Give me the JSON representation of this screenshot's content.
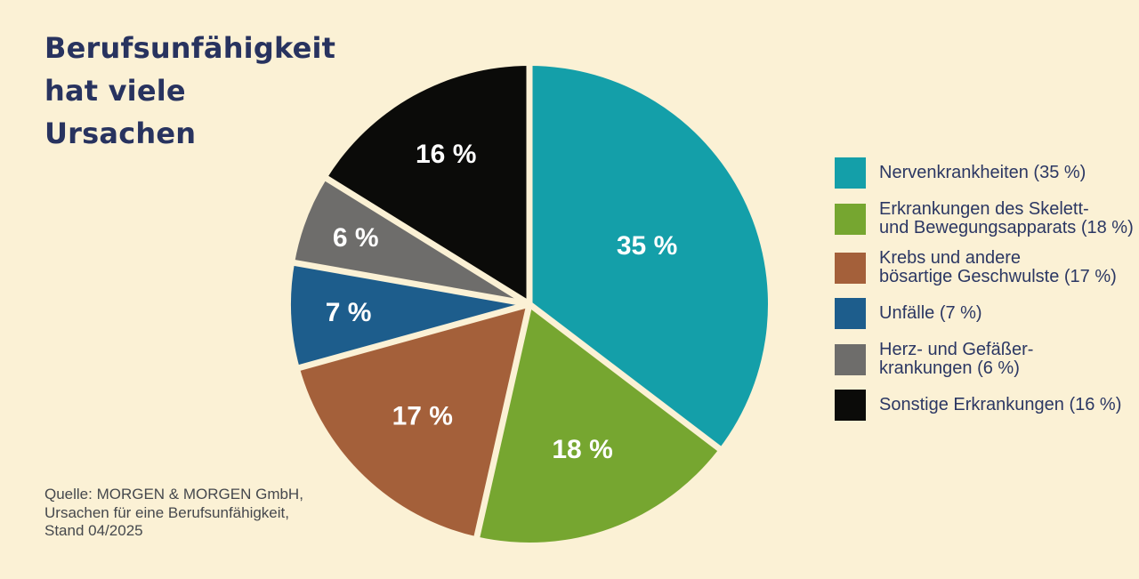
{
  "title": {
    "lines": [
      "Berufsunfähigkeit",
      "hat viele",
      "Ursachen"
    ]
  },
  "legend": {
    "items": [
      {
        "lines": [
          "Nervenkrankheiten (35 %)"
        ]
      },
      {
        "lines": [
          "Erkrankungen des Skelett-",
          "und Bewegungsapparats (18 %)"
        ]
      },
      {
        "lines": [
          "Krebs und andere",
          "bösartige Geschwulste (17 %)"
        ]
      },
      {
        "lines": [
          "Unfälle (7 %)"
        ]
      },
      {
        "lines": [
          "Herz- und Gefäßer-",
          "krankungen (6 %)"
        ]
      },
      {
        "lines": [
          "Sonstige Erkrankungen (16 %)"
        ]
      }
    ]
  },
  "source": {
    "lines": [
      "Quelle: MORGEN & MORGEN GmbH,",
      "Ursachen für eine Berufsunfähigkeit,",
      "Stand 04/2025"
    ]
  },
  "colors": {
    "background": "#FBF1D5",
    "title_text": "#28335F",
    "legend_text": "#2B3763",
    "source_text": "#45484D",
    "slice_label_text": "#FFFFFF"
  },
  "chart_data": {
    "type": "pie",
    "title": "Berufsunfähigkeit hat viele Ursachen",
    "unit": "%",
    "start_angle_deg": 0,
    "direction": "clockwise",
    "legend_position": "right",
    "gap_color": "#FBF1D5",
    "slice_label_color": "#FFFFFF",
    "slices": [
      {
        "name": "Nervenkrankheiten",
        "value": 35,
        "color": "#149FA9",
        "label": "35 %",
        "label_r": 0.55
      },
      {
        "name": "Erkrankungen des Skelett- und Bewegungsapparats",
        "value": 18,
        "color": "#76A630",
        "label": "18 %",
        "label_r": 0.65
      },
      {
        "name": "Krebs und andere bösartige Geschwulste",
        "value": 17,
        "color": "#A4603A",
        "label": "17 %",
        "label_r": 0.65
      },
      {
        "name": "Unfälle",
        "value": 7,
        "color": "#1D5D8C",
        "label": "7 %",
        "label_r": 0.76
      },
      {
        "name": "Herz- und Gefäßerkrankungen",
        "value": 6,
        "color": "#6E6D6B",
        "label": "6 %",
        "label_r": 0.78
      },
      {
        "name": "Sonstige Erkrankungen",
        "value": 16,
        "color": "#0B0B09",
        "label": "16 %",
        "label_r": 0.72
      }
    ]
  }
}
